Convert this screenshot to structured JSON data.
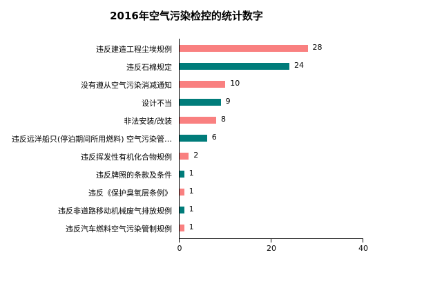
{
  "chart_data": {
    "type": "bar",
    "orientation": "horizontal",
    "title": "2016年空气污染检控的统计数字",
    "xlabel": "",
    "ylabel": "",
    "xlim": [
      0,
      40
    ],
    "x_ticks": [
      0,
      20,
      40
    ],
    "grid": false,
    "legend": null,
    "colors": [
      "#f98080",
      "#007c7a"
    ],
    "categories": [
      "违反建造工程尘埃规例",
      "违反石棉规定",
      "没有遵从空气污染消减通知",
      "设计不当",
      "非法安装/改装",
      "违反远洋船只(停泊期间所用燃料) 空气污染管…",
      "违反挥发性有机化合物规例",
      "违反牌照的条款及条件",
      "违反《保护臭氧层条例》",
      "违反非道路移动机械废气排放规例",
      "违反汽车燃料空气污染管制规例"
    ],
    "values": [
      28,
      24,
      10,
      9,
      8,
      6,
      2,
      1,
      1,
      1,
      1
    ],
    "bars": [
      {
        "label": "违反建造工程尘埃规例",
        "value": 28,
        "display": "28",
        "color": "#f98080"
      },
      {
        "label": "违反石棉规定",
        "value": 24,
        "display": "24",
        "color": "#007c7a"
      },
      {
        "label": "没有遵从空气污染消减通知",
        "value": 10,
        "display": "10",
        "color": "#f98080"
      },
      {
        "label": "设计不当",
        "value": 9,
        "display": "9",
        "color": "#007c7a"
      },
      {
        "label": "非法安装/改装",
        "value": 8,
        "display": "8",
        "color": "#f98080"
      },
      {
        "label": "违反远洋船只(停泊期间所用燃料) 空气污染管…",
        "value": 6,
        "display": "6",
        "color": "#007c7a"
      },
      {
        "label": "违反挥发性有机化合物规例",
        "value": 2,
        "display": "2",
        "color": "#f98080"
      },
      {
        "label": "违反牌照的条款及条件",
        "value": 1,
        "display": "1",
        "color": "#007c7a"
      },
      {
        "label": "违反《保护臭氧层条例》",
        "value": 1,
        "display": "1",
        "color": "#f98080"
      },
      {
        "label": "违反非道路移动机械废气排放规例",
        "value": 1,
        "display": "1",
        "color": "#007c7a"
      },
      {
        "label": "违反汽车燃料空气污染管制规例",
        "value": 1,
        "display": "1",
        "color": "#f98080"
      }
    ],
    "tick_labels": [
      "0",
      "20",
      "40"
    ]
  }
}
